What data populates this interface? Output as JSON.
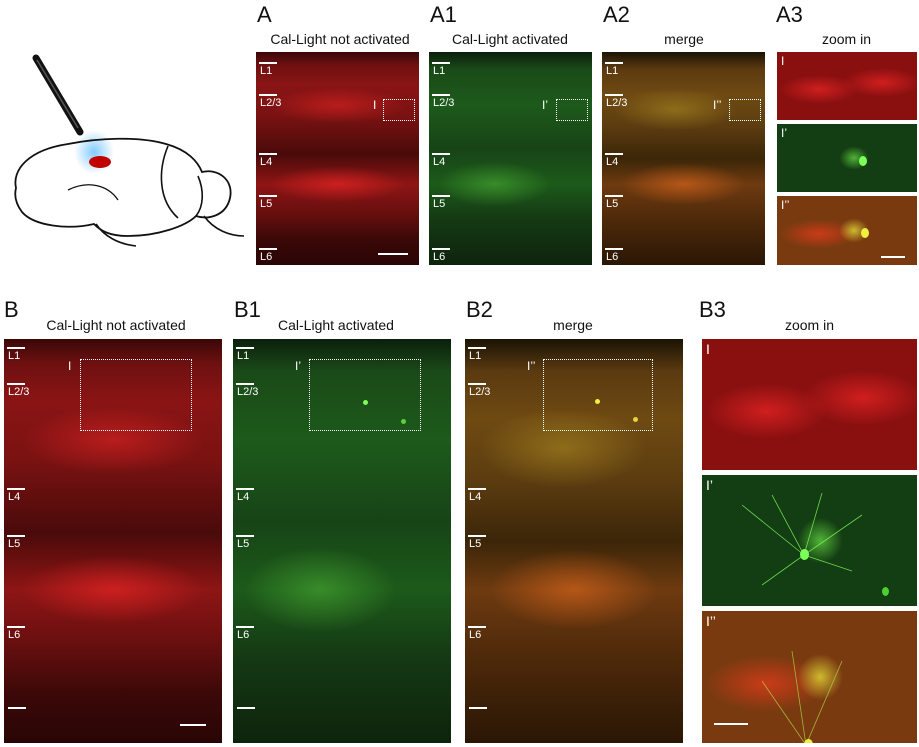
{
  "top": {
    "panels": [
      {
        "letter": "A",
        "title": "Cal-Light not activated"
      },
      {
        "letter": "A1",
        "title": "Cal-Light activated"
      },
      {
        "letter": "A2",
        "title": "merge"
      },
      {
        "letter": "A3",
        "title": "zoom in"
      }
    ],
    "roi_labels": [
      "I",
      "I’",
      "I’’"
    ],
    "zoom_labels": [
      "I",
      "I’",
      "I’’"
    ]
  },
  "bottom": {
    "panels": [
      {
        "letter": "B",
        "title": "Cal-Light not activated"
      },
      {
        "letter": "B1",
        "title": "Cal-Light activated"
      },
      {
        "letter": "B2",
        "title": "merge"
      },
      {
        "letter": "B3",
        "title": "zoom in"
      }
    ],
    "roi_labels": [
      "I",
      "I’",
      "I’’"
    ],
    "zoom_labels": [
      "I",
      "I’",
      "I’’"
    ]
  },
  "layers": [
    "L1",
    "L2/3",
    "L4",
    "L5",
    "L6"
  ],
  "colors": {
    "red_channel": "#c81818",
    "green_channel": "#2f8f2a",
    "merge": "#c8a020",
    "light": "#9fd8ff",
    "injection": "#c00000"
  }
}
